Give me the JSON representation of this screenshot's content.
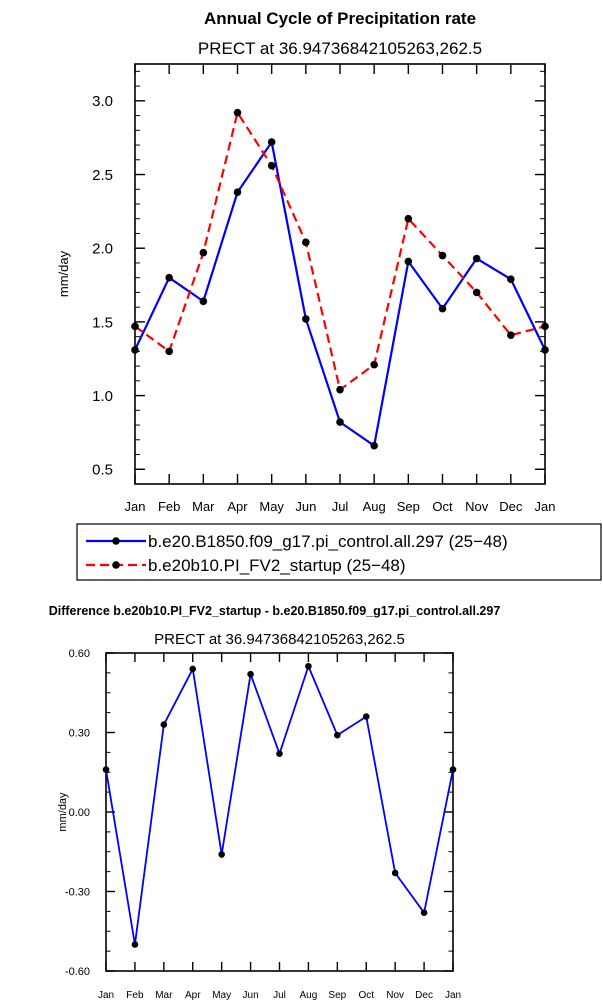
{
  "chart_data": [
    {
      "type": "line",
      "title": "Annual Cycle of Precipitation rate",
      "subtitle": "PRECT at  36.94736842105263,262.5",
      "ylabel": "mm/day",
      "ylim": [
        0.4,
        3.25
      ],
      "yticks": [
        0.5,
        1.0,
        1.5,
        2.0,
        2.5,
        3.0
      ],
      "ytick_labels": [
        "0.5",
        "1.0",
        "1.5",
        "2.0",
        "2.5",
        "3.0"
      ],
      "categories": [
        "Jan",
        "Feb",
        "Mar",
        "Apr",
        "May",
        "Jun",
        "Jul",
        "Aug",
        "Sep",
        "Oct",
        "Nov",
        "Dec",
        "Jan"
      ],
      "series": [
        {
          "name": "b.e20.B1850.f09_g17.pi_control.all.297 (25−48)",
          "color": "#0000ff",
          "dash": "solid",
          "values": [
            1.31,
            1.8,
            1.64,
            2.38,
            2.72,
            1.52,
            0.82,
            0.66,
            1.91,
            1.59,
            1.93,
            1.79,
            1.31
          ]
        },
        {
          "name": "b.e20b10.PI_FV2_startup (25−48)",
          "color": "#ff0000",
          "dash": "dashed",
          "values": [
            1.47,
            1.3,
            1.97,
            2.92,
            2.56,
            2.04,
            1.04,
            1.21,
            2.2,
            1.95,
            1.7,
            1.41,
            1.47
          ]
        }
      ]
    },
    {
      "type": "line",
      "title": "Difference b.e20b10.PI_FV2_startup - b.e20.B1850.f09_g17.pi_control.all.297",
      "subtitle": "PRECT at  36.94736842105263,262.5",
      "ylabel": "mm/day",
      "ylim": [
        -0.6,
        0.6
      ],
      "yticks": [
        -0.6,
        -0.3,
        0.0,
        0.3,
        0.6
      ],
      "ytick_labels": [
        "-0.60",
        "-0.30",
        "0.00",
        "0.30",
        "0.60"
      ],
      "categories": [
        "Jan",
        "Feb",
        "Mar",
        "Apr",
        "May",
        "Jun",
        "Jul",
        "Aug",
        "Sep",
        "Oct",
        "Nov",
        "Dec",
        "Jan"
      ],
      "series": [
        {
          "name": "difference",
          "color": "#0000ff",
          "dash": "solid",
          "values": [
            0.16,
            -0.5,
            0.33,
            0.54,
            -0.16,
            0.52,
            0.22,
            0.55,
            0.29,
            0.36,
            -0.23,
            -0.38,
            0.16
          ]
        }
      ]
    }
  ]
}
